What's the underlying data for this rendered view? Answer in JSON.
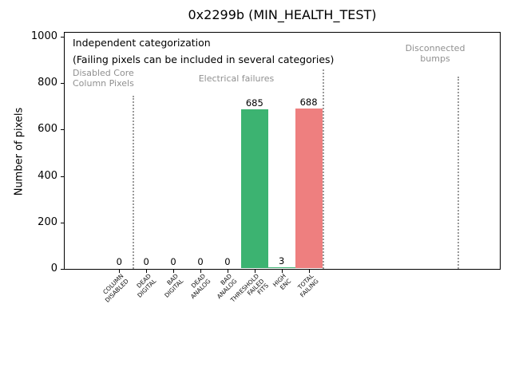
{
  "chart_data": {
    "type": "bar",
    "title": "0x2299b (MIN_HEALTH_TEST)",
    "ylabel": "Number of pixels",
    "xlabel": "",
    "ylim": [
      0,
      1020
    ],
    "xlim": [
      -2,
      14
    ],
    "grid": false,
    "legend": "none",
    "yticks": [
      0,
      200,
      400,
      600,
      800,
      1000
    ],
    "categories": [
      "COLUMN\nDISABLED",
      "DEAD\nDIGITAL",
      "BAD\nDIGITAL",
      "DEAD\nANALOG",
      "BAD\nANALOG",
      "THRESHOLD\nFAILED\nFITS",
      "HIGH\nENC",
      "TOTAL\nFAILING"
    ],
    "values": [
      0,
      0,
      0,
      0,
      0,
      685,
      3,
      688
    ],
    "value_labels": [
      "0",
      "0",
      "0",
      "0",
      "0",
      "685",
      "3",
      "688"
    ],
    "bar_colors": [
      "#3cb371",
      "#3cb371",
      "#3cb371",
      "#3cb371",
      "#3cb371",
      "#3cb371",
      "#3cb371",
      "#ee7f7f"
    ],
    "annotations": [
      {
        "text": "Independent categorization",
        "color": "#000000"
      },
      {
        "text": "(Failing pixels can be included in several categories)",
        "color": "#000000"
      },
      {
        "text": "Disabled Core\nColumn Pixels",
        "color": "#909090"
      },
      {
        "text": "Electrical failures",
        "color": "#909090"
      },
      {
        "text": "Disconnected\nbumps",
        "color": "#909090"
      }
    ],
    "separators": {
      "positions_data_x": [
        0.5,
        7.5,
        12.5
      ],
      "style": "dotted",
      "color": "#9a9a9a"
    }
  }
}
